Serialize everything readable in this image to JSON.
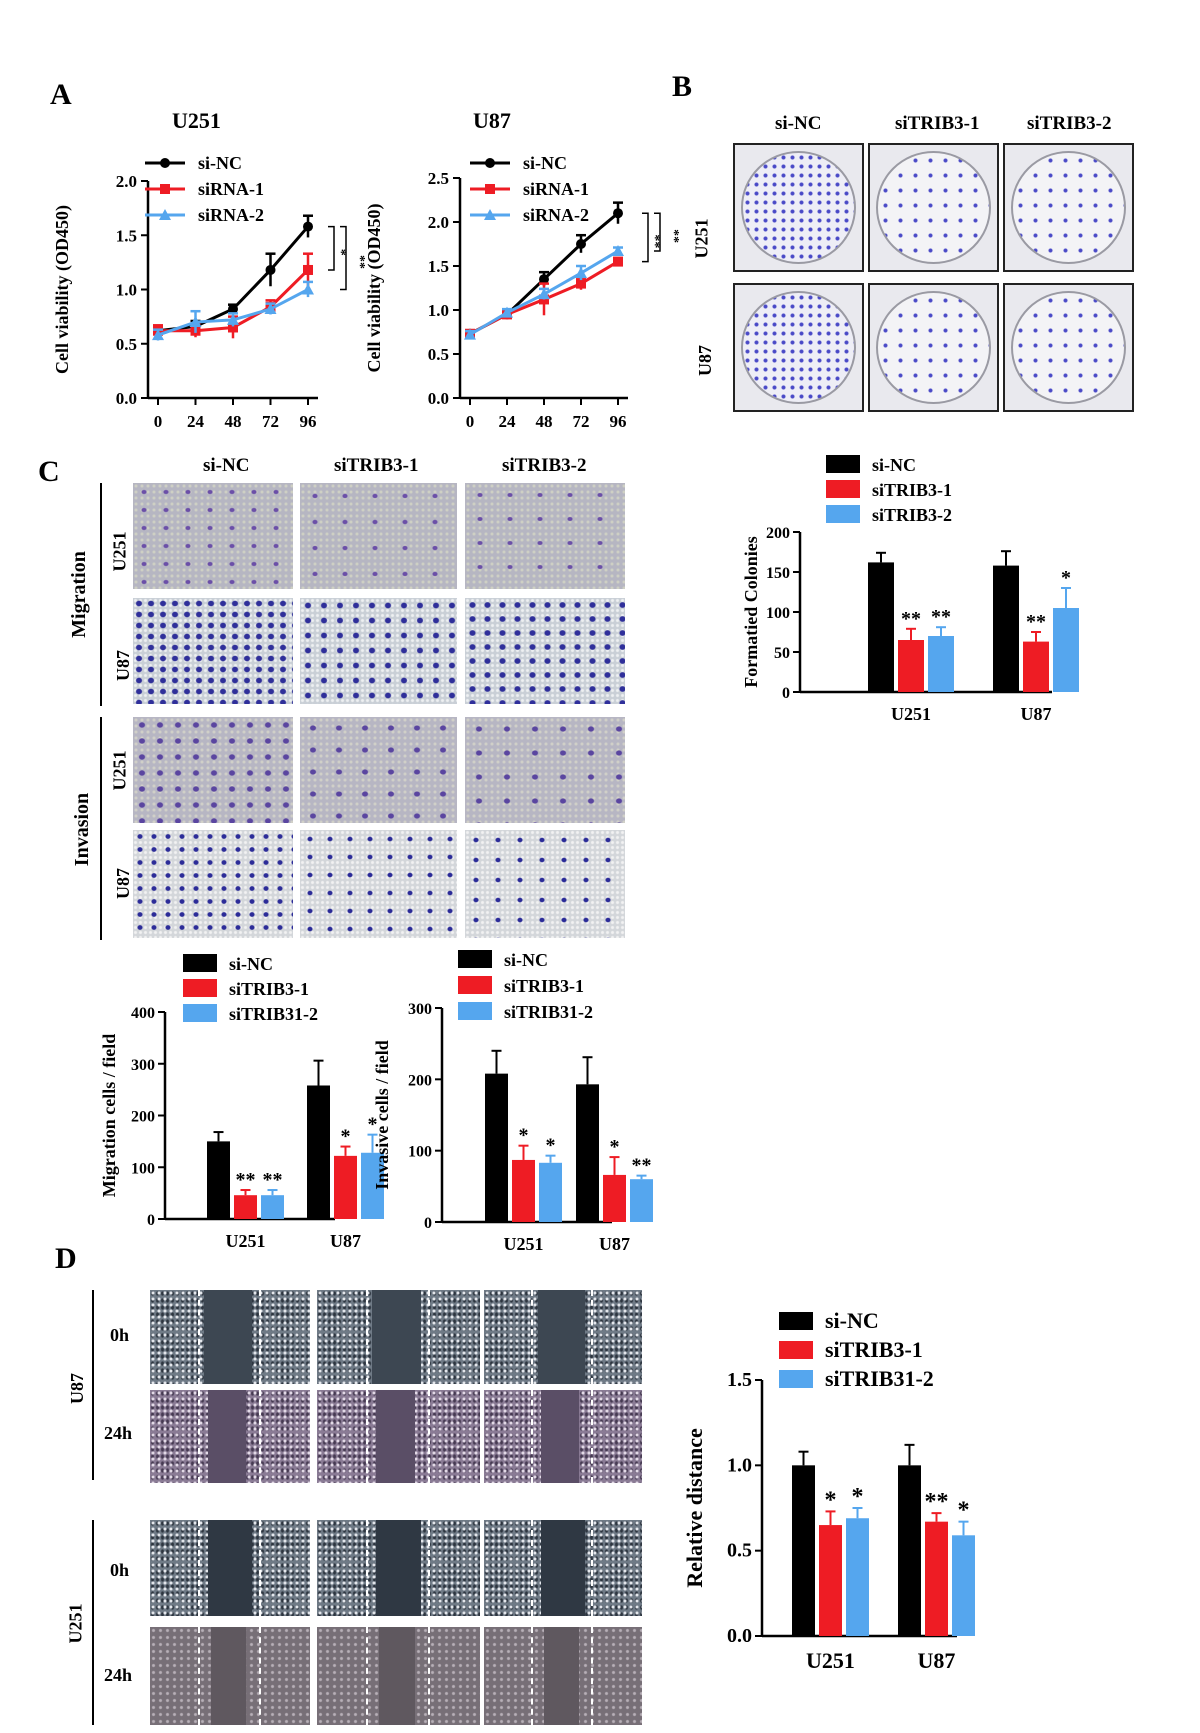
{
  "panels": {
    "a": "A",
    "b": "B",
    "c": "C",
    "d": "D"
  },
  "panel_a": {
    "u251_title": "U251",
    "u87_title": "U87",
    "legend": [
      "si-NC",
      "siRNA-1",
      "siRNA-2"
    ],
    "colors": {
      "si-NC": "#000000",
      "siRNA-1": "#ee1c24",
      "siRNA-2": "#55a6ee"
    }
  },
  "panel_b": {
    "col_headers": [
      "si-NC",
      "siTRIB3-1",
      "siTRIB3-2"
    ],
    "row_labels": [
      "U251",
      "U87"
    ]
  },
  "panel_c": {
    "col_headers": [
      "si-NC",
      "siTRIB3-1",
      "siTRIB3-2"
    ],
    "group_labels": [
      "Migration",
      "Invasion"
    ],
    "row_labels": [
      "U251",
      "U87",
      "U251",
      "U87"
    ]
  },
  "panel_d": {
    "group_labels": [
      "U87",
      "U251"
    ],
    "time_labels": [
      "0h",
      "24h",
      "0h",
      "24h"
    ]
  },
  "chart_data": [
    {
      "id": "a_u251",
      "type": "line",
      "title": "U251",
      "xlabel": "",
      "ylabel": "Cell viability (OD450)",
      "x": [
        0,
        24,
        48,
        72,
        96
      ],
      "x_ticks": [
        "0",
        "24",
        "48",
        "72",
        "96"
      ],
      "ylim": [
        0,
        2.0
      ],
      "y_ticks": [
        "0.0",
        "0.5",
        "1.0",
        "1.5",
        "2.0"
      ],
      "legend_position": "top",
      "series": [
        {
          "name": "si-NC",
          "color": "#000000",
          "marker": "circle",
          "values": [
            0.62,
            0.66,
            0.82,
            1.18,
            1.58
          ],
          "errors": [
            0.03,
            0.05,
            0.04,
            0.15,
            0.1
          ]
        },
        {
          "name": "siRNA-1",
          "color": "#ee1c24",
          "marker": "square",
          "values": [
            0.62,
            0.62,
            0.65,
            0.84,
            1.18
          ],
          "errors": [
            0.05,
            0.06,
            0.1,
            0.06,
            0.15
          ]
        },
        {
          "name": "siRNA-2",
          "color": "#55a6ee",
          "marker": "triangle",
          "values": [
            0.58,
            0.7,
            0.72,
            0.82,
            1.0
          ],
          "errors": [
            0.05,
            0.1,
            0.06,
            0.05,
            0.07
          ]
        }
      ],
      "annotations": [
        "*",
        "**"
      ]
    },
    {
      "id": "a_u87",
      "type": "line",
      "title": "U87",
      "xlabel": "",
      "ylabel": "Cell viability (OD450)",
      "x": [
        0,
        24,
        48,
        72,
        96
      ],
      "x_ticks": [
        "0",
        "24",
        "48",
        "72",
        "96"
      ],
      "ylim": [
        0,
        2.5
      ],
      "y_ticks": [
        "0.0",
        "0.5",
        "1.0",
        "1.5",
        "2.0",
        "2.5"
      ],
      "legend_position": "top",
      "series": [
        {
          "name": "si-NC",
          "color": "#000000",
          "marker": "circle",
          "values": [
            0.73,
            0.95,
            1.35,
            1.75,
            2.1
          ],
          "errors": [
            0.04,
            0.04,
            0.08,
            0.1,
            0.12
          ]
        },
        {
          "name": "siRNA-1",
          "color": "#ee1c24",
          "marker": "square",
          "values": [
            0.73,
            0.95,
            1.12,
            1.3,
            1.55
          ],
          "errors": [
            0.04,
            0.04,
            0.18,
            0.07,
            0.04
          ]
        },
        {
          "name": "siRNA-2",
          "color": "#55a6ee",
          "marker": "triangle",
          "values": [
            0.72,
            0.97,
            1.18,
            1.42,
            1.67
          ],
          "errors": [
            0.04,
            0.04,
            0.06,
            0.08,
            0.04
          ]
        }
      ],
      "annotations": [
        "**",
        "**"
      ]
    },
    {
      "id": "b_colonies",
      "type": "bar",
      "title": "",
      "xlabel": "",
      "ylabel": "Formatied Colonies",
      "categories": [
        "U251",
        "U87"
      ],
      "ylim": [
        0,
        200
      ],
      "y_ticks": [
        "0",
        "50",
        "100",
        "150",
        "200"
      ],
      "legend_position": "top",
      "series": [
        {
          "name": "si-NC",
          "color": "#000000",
          "values": [
            162,
            158
          ],
          "errors": [
            12,
            18
          ],
          "sig": [
            "",
            ""
          ]
        },
        {
          "name": "siTRIB3-1",
          "color": "#ee1c24",
          "values": [
            65,
            63
          ],
          "errors": [
            14,
            12
          ],
          "sig": [
            "**",
            "**"
          ]
        },
        {
          "name": "siTRIB3-2",
          "color": "#55a6ee",
          "values": [
            70,
            105
          ],
          "errors": [
            11,
            25
          ],
          "sig": [
            "**",
            "*"
          ]
        }
      ]
    },
    {
      "id": "c_migration",
      "type": "bar",
      "title": "",
      "xlabel": "",
      "ylabel": "Migration cells / field",
      "categories": [
        "U251",
        "U87"
      ],
      "ylim": [
        0,
        400
      ],
      "y_ticks": [
        "0",
        "100",
        "200",
        "300",
        "400"
      ],
      "legend_position": "top",
      "series": [
        {
          "name": "si-NC",
          "color": "#000000",
          "values": [
            150,
            258
          ],
          "errors": [
            18,
            48
          ],
          "sig": [
            "",
            ""
          ]
        },
        {
          "name": "siTRIB3-1",
          "color": "#ee1c24",
          "values": [
            46,
            122
          ],
          "errors": [
            10,
            18
          ],
          "sig": [
            "**",
            "*"
          ]
        },
        {
          "name": "siTRIB31-2",
          "color": "#55a6ee",
          "values": [
            46,
            128
          ],
          "errors": [
            10,
            35
          ],
          "sig": [
            "**",
            "*"
          ]
        }
      ]
    },
    {
      "id": "c_invasion",
      "type": "bar",
      "title": "",
      "xlabel": "",
      "ylabel": "Invasive cells / field",
      "categories": [
        "U251",
        "U87"
      ],
      "ylim": [
        0,
        300
      ],
      "y_ticks": [
        "0",
        "100",
        "200",
        "300"
      ],
      "legend_position": "top",
      "series": [
        {
          "name": "si-NC",
          "color": "#000000",
          "values": [
            208,
            193
          ],
          "errors": [
            32,
            38
          ],
          "sig": [
            "",
            ""
          ]
        },
        {
          "name": "siTRIB3-1",
          "color": "#ee1c24",
          "values": [
            87,
            66
          ],
          "errors": [
            20,
            25
          ],
          "sig": [
            "*",
            "*"
          ]
        },
        {
          "name": "siTRIB31-2",
          "color": "#55a6ee",
          "values": [
            83,
            60
          ],
          "errors": [
            10,
            5
          ],
          "sig": [
            "*",
            "**"
          ]
        }
      ]
    },
    {
      "id": "d_distance",
      "type": "bar",
      "title": "",
      "xlabel": "",
      "ylabel": "Relative distance",
      "categories": [
        "U251",
        "U87"
      ],
      "ylim": [
        0,
        1.5
      ],
      "y_ticks": [
        "0.0",
        "0.5",
        "1.0",
        "1.5"
      ],
      "legend_position": "top",
      "series": [
        {
          "name": "si-NC",
          "color": "#000000",
          "values": [
            1.0,
            1.0
          ],
          "errors": [
            0.08,
            0.12
          ],
          "sig": [
            "",
            ""
          ]
        },
        {
          "name": "siTRIB3-1",
          "color": "#ee1c24",
          "values": [
            0.65,
            0.67
          ],
          "errors": [
            0.08,
            0.05
          ],
          "sig": [
            "*",
            "**"
          ]
        },
        {
          "name": "siTRIB31-2",
          "color": "#55a6ee",
          "values": [
            0.69,
            0.59
          ],
          "errors": [
            0.06,
            0.08
          ],
          "sig": [
            "*",
            "*"
          ]
        }
      ]
    }
  ]
}
